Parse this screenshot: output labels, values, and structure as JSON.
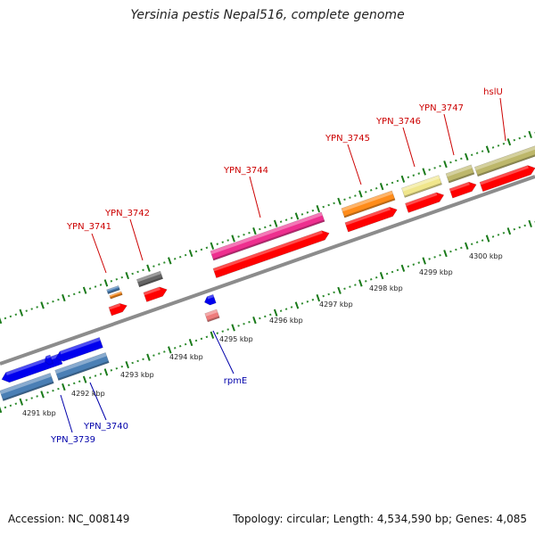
{
  "title": "Yersinia pestis Nepal516, complete genome",
  "footer": {
    "accession": "Accession: NC_008149",
    "topology": "Topology: circular; Length: 4,534,590 bp; Genes: 4,085"
  },
  "colors": {
    "forward_label": "#cc0000",
    "reverse_label": "#0000aa",
    "backbone": "#8c8c8c",
    "tick_major": "#1a7a1a",
    "tick_minor": "#2e8b2e"
  },
  "kbp_labels": [
    "4291 kbp",
    "4292 kbp",
    "4293 kbp",
    "4294 kbp",
    "4295 kbp",
    "4296 kbp",
    "4297 kbp",
    "4298 kbp",
    "4299 kbp",
    "4300 kbp"
  ],
  "forward_genes": [
    "YPN_3741",
    "YPN_3742",
    "YPN_3744",
    "YPN_3745",
    "YPN_3746",
    "YPN_3747",
    "hslU"
  ],
  "reverse_genes": [
    "rpmE",
    "YPN_3739",
    "YPN_3740"
  ]
}
